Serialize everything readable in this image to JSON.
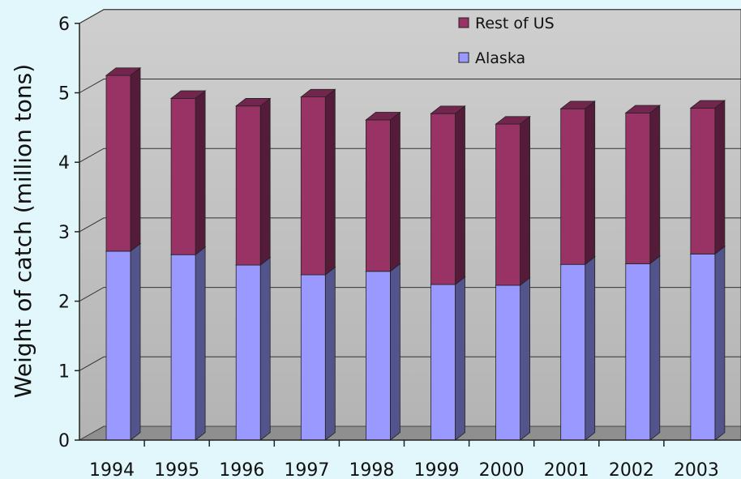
{
  "chart_data": {
    "type": "bar",
    "stacked": true,
    "three_d": true,
    "categories": [
      "1994",
      "1995",
      "1996",
      "1997",
      "1998",
      "1999",
      "2000",
      "2001",
      "2002",
      "2003"
    ],
    "series": [
      {
        "name": "Alaska",
        "color": "#9999ff",
        "values": [
          2.72,
          2.67,
          2.52,
          2.38,
          2.43,
          2.24,
          2.23,
          2.53,
          2.54,
          2.68
        ]
      },
      {
        "name": "Rest of US",
        "color": "#993366",
        "values": [
          2.53,
          2.25,
          2.29,
          2.56,
          2.18,
          2.46,
          2.32,
          2.24,
          2.17,
          2.1
        ]
      }
    ],
    "y_ticks": [
      "0",
      "1",
      "2",
      "3",
      "4",
      "5",
      "6"
    ],
    "ylim": [
      0,
      6
    ],
    "ylabel": "Weight of catch (million tons)",
    "xlabel": "",
    "grid": true,
    "legend_position": "top-right"
  }
}
